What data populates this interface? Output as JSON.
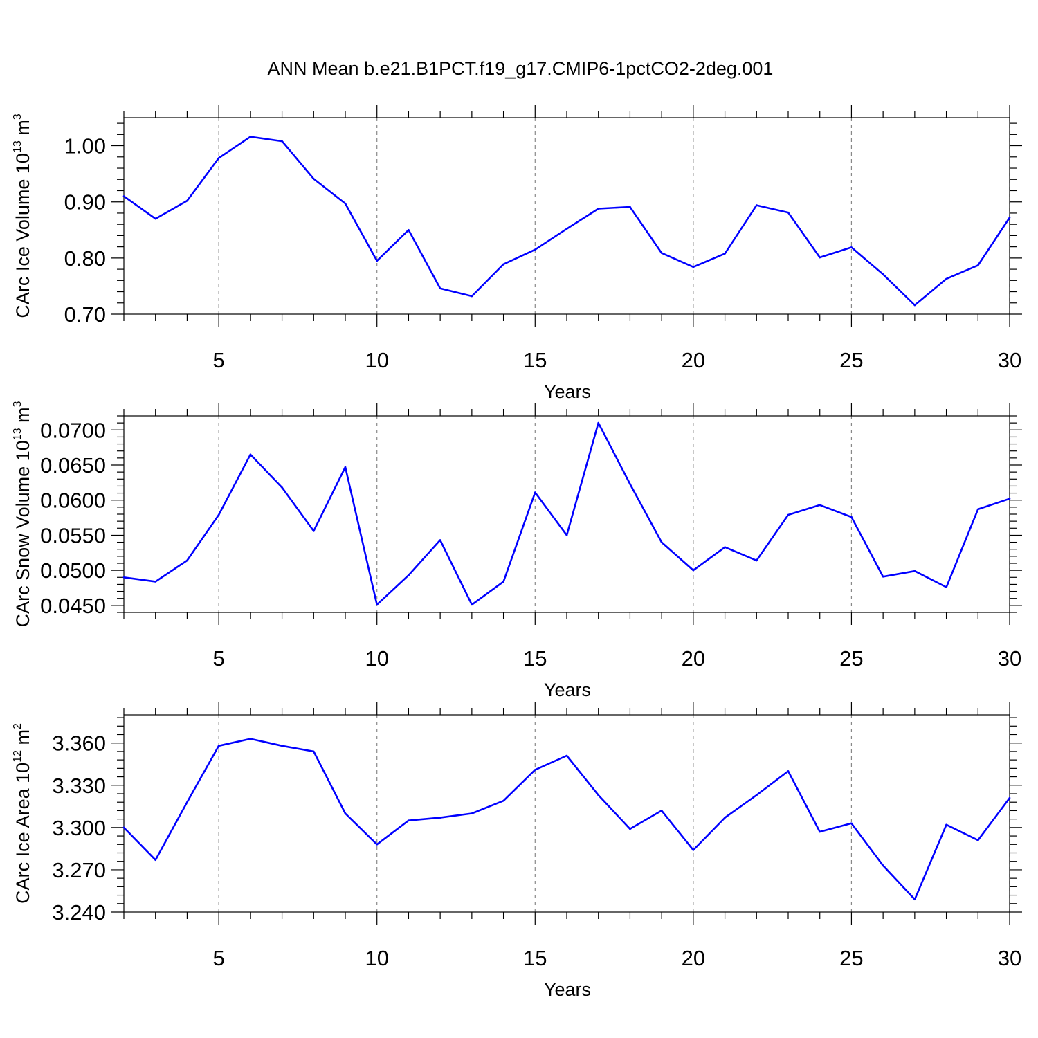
{
  "chart_data": [
    {
      "type": "line",
      "title": "ANN Mean b.e21.B1PCT.f19_g17.CMIP6-1pctCO2-2deg.001",
      "xlabel": "Years",
      "ylabel_main": "CArc Ice Volume 10",
      "ylabel_sup": "13",
      "ylabel_unit": " m",
      "ylabel_unit_sup": "3",
      "xlim": [
        2,
        30
      ],
      "ylim": [
        0.7,
        1.05
      ],
      "xticks": [
        5,
        10,
        15,
        20,
        25,
        30
      ],
      "xtick_labels": [
        "5",
        "10",
        "15",
        "20",
        "25",
        "30"
      ],
      "yticks": [
        0.7,
        0.8,
        0.9,
        1.0
      ],
      "ytick_labels": [
        "0.70",
        "0.80",
        "0.90",
        "1.00"
      ],
      "grid": "vertical dashed at major x ticks",
      "line_color": "#0000ff",
      "x": [
        2,
        3,
        4,
        5,
        6,
        7,
        8,
        9,
        10,
        11,
        12,
        13,
        14,
        15,
        16,
        17,
        18,
        19,
        20,
        21,
        22,
        23,
        24,
        25,
        26,
        27,
        28,
        29,
        30
      ],
      "values": [
        0.91,
        0.87,
        0.902,
        0.978,
        1.016,
        1.008,
        0.941,
        0.897,
        0.795,
        0.85,
        0.746,
        0.732,
        0.789,
        0.815,
        0.852,
        0.888,
        0.891,
        0.809,
        0.784,
        0.808,
        0.894,
        0.881,
        0.801,
        0.819,
        0.771,
        0.716,
        0.763,
        0.787,
        0.872
      ]
    },
    {
      "type": "line",
      "title": "",
      "xlabel": "Years",
      "ylabel_main": "CArc Snow Volume 10",
      "ylabel_sup": "13",
      "ylabel_unit": " m",
      "ylabel_unit_sup": "3",
      "xlim": [
        2,
        30
      ],
      "ylim": [
        0.044,
        0.072
      ],
      "xticks": [
        5,
        10,
        15,
        20,
        25,
        30
      ],
      "xtick_labels": [
        "5",
        "10",
        "15",
        "20",
        "25",
        "30"
      ],
      "yticks": [
        0.045,
        0.05,
        0.055,
        0.06,
        0.065,
        0.07
      ],
      "ytick_labels": [
        "0.0450",
        "0.0500",
        "0.0550",
        "0.0600",
        "0.0650",
        "0.0700"
      ],
      "grid": "vertical dashed at major x ticks",
      "line_color": "#0000ff",
      "x": [
        2,
        3,
        4,
        5,
        6,
        7,
        8,
        9,
        10,
        11,
        12,
        13,
        14,
        15,
        16,
        17,
        18,
        19,
        20,
        21,
        22,
        23,
        24,
        25,
        26,
        27,
        28,
        29,
        30
      ],
      "values": [
        0.049,
        0.0484,
        0.0514,
        0.0579,
        0.0665,
        0.0618,
        0.0556,
        0.0647,
        0.0451,
        0.0493,
        0.0543,
        0.0451,
        0.0484,
        0.0611,
        0.055,
        0.071,
        0.0623,
        0.054,
        0.05,
        0.0533,
        0.0514,
        0.0579,
        0.0593,
        0.0576,
        0.0491,
        0.0499,
        0.0476,
        0.0587,
        0.0602
      ]
    },
    {
      "type": "line",
      "title": "",
      "xlabel": "Years",
      "ylabel_main": "CArc Ice Area 10",
      "ylabel_sup": "12",
      "ylabel_unit": " m",
      "ylabel_unit_sup": "2",
      "xlim": [
        2,
        30
      ],
      "ylim": [
        3.24,
        3.38
      ],
      "xticks": [
        5,
        10,
        15,
        20,
        25,
        30
      ],
      "xtick_labels": [
        "5",
        "10",
        "15",
        "20",
        "25",
        "30"
      ],
      "yticks": [
        3.24,
        3.27,
        3.3,
        3.33,
        3.36
      ],
      "ytick_labels": [
        "3.240",
        "3.270",
        "3.300",
        "3.330",
        "3.360"
      ],
      "grid": "vertical dashed at major x ticks",
      "line_color": "#0000ff",
      "x": [
        2,
        3,
        4,
        5,
        6,
        7,
        8,
        9,
        10,
        11,
        12,
        13,
        14,
        15,
        16,
        17,
        18,
        19,
        20,
        21,
        22,
        23,
        24,
        25,
        26,
        27,
        28,
        29,
        30
      ],
      "values": [
        3.3,
        3.277,
        3.318,
        3.358,
        3.363,
        3.358,
        3.354,
        3.31,
        3.288,
        3.305,
        3.307,
        3.31,
        3.319,
        3.341,
        3.351,
        3.323,
        3.299,
        3.312,
        3.284,
        3.307,
        3.323,
        3.34,
        3.297,
        3.303,
        3.273,
        3.249,
        3.302,
        3.291,
        3.321
      ]
    }
  ]
}
